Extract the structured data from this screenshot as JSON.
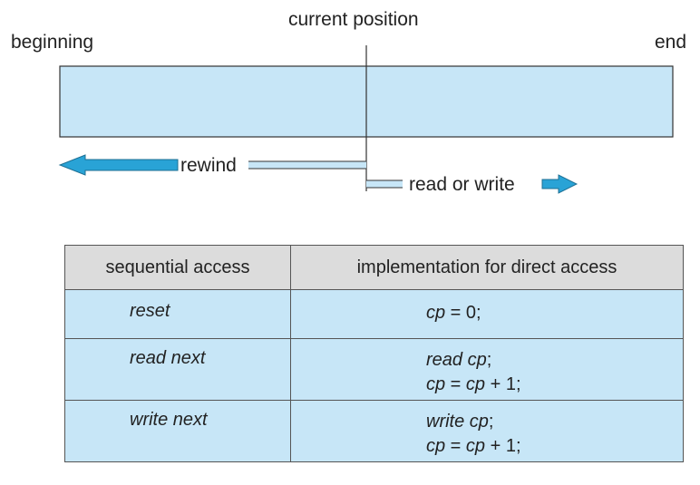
{
  "diagram": {
    "label_beginning": "beginning",
    "label_current": "current position",
    "label_end": "end",
    "label_rewind": "rewind",
    "label_readwrite": "read or write",
    "colors": {
      "tape_fill": "#c7e6f7",
      "arrow_fill": "#29a3d6",
      "line": "#333333"
    }
  },
  "table": {
    "headers": [
      "sequential access",
      "implementation for direct access"
    ],
    "rows": [
      {
        "op": "reset",
        "impl_line1": "cp = 0;",
        "impl_line2": ""
      },
      {
        "op": "read next",
        "impl_line1": "read cp;",
        "impl_line2": "cp = cp + 1;"
      },
      {
        "op": "write next",
        "impl_line1": "write cp;",
        "impl_line2": "cp = cp + 1;"
      }
    ]
  }
}
